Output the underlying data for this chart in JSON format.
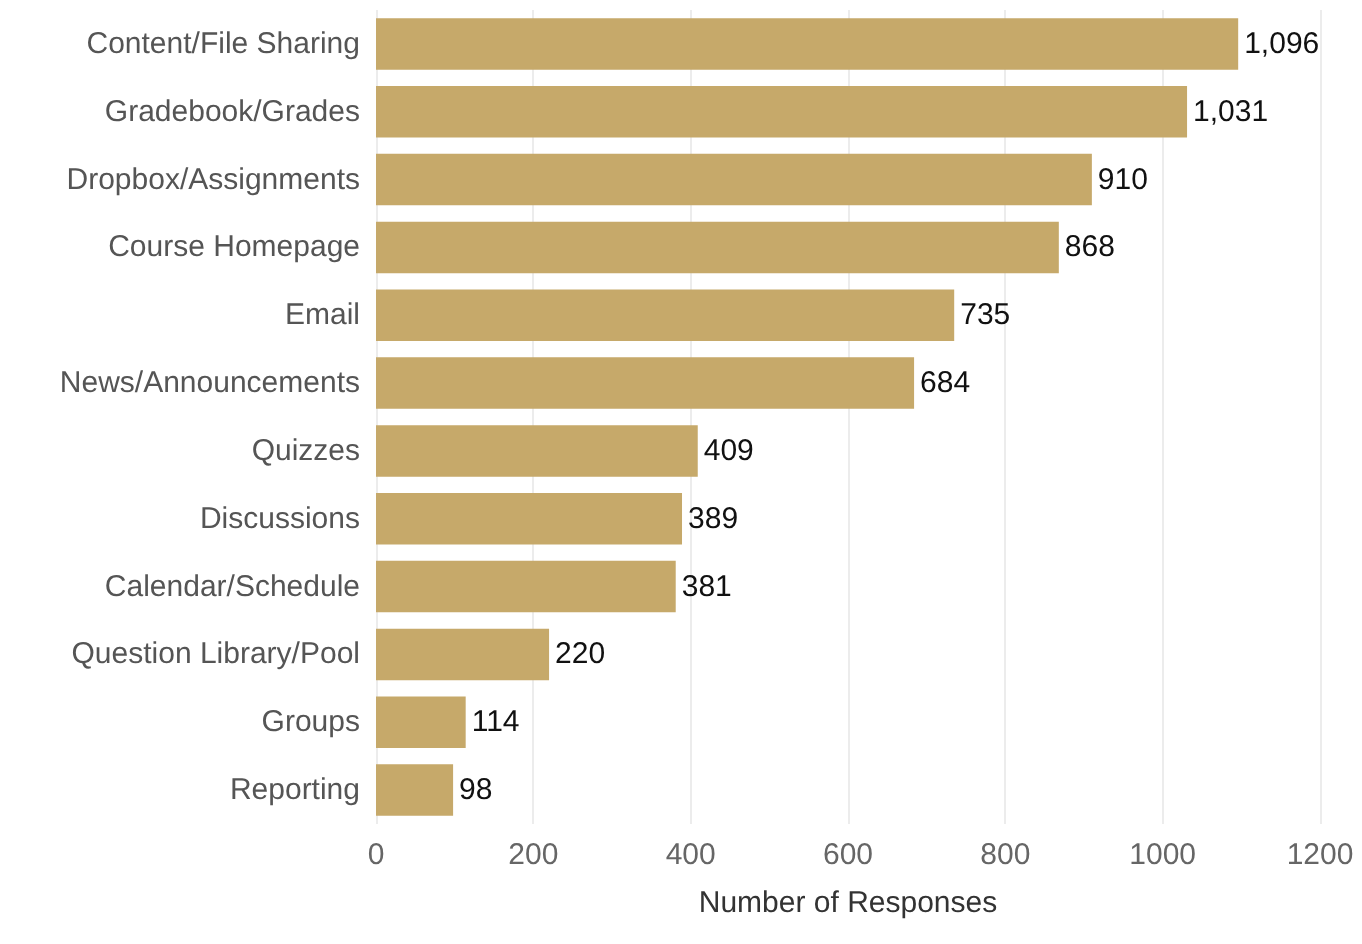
{
  "chart_data": {
    "type": "bar",
    "orientation": "horizontal",
    "xlabel": "Number of Responses",
    "categories": [
      "Content/File Sharing",
      "Gradebook/Grades",
      "Dropbox/Assignments",
      "Course Homepage",
      "Email",
      "News/Announcements",
      "Quizzes",
      "Discussions",
      "Calendar/Schedule",
      "Question Library/Pool",
      "Groups",
      "Reporting"
    ],
    "values": [
      1096,
      1031,
      910,
      868,
      735,
      684,
      409,
      389,
      381,
      220,
      114,
      98
    ],
    "value_labels": [
      "1,096",
      "1,031",
      "910",
      "868",
      "735",
      "684",
      "409",
      "389",
      "381",
      "220",
      "114",
      "98"
    ],
    "color": "#c6a96a",
    "xlim": [
      0,
      1200
    ],
    "xticks": [
      0,
      200,
      400,
      600,
      800,
      1000,
      1200
    ],
    "grid": "x"
  }
}
